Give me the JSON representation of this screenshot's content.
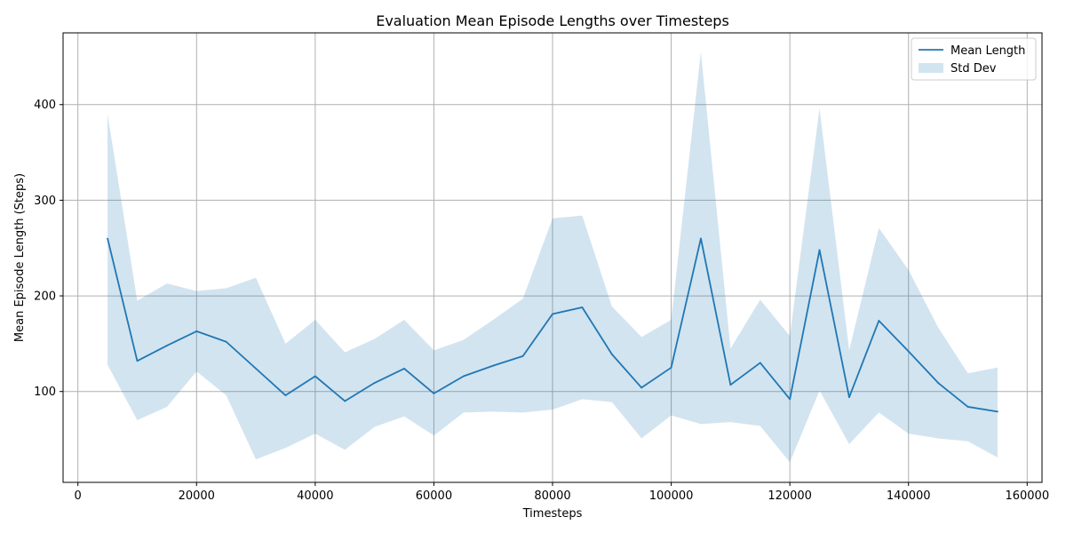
{
  "chart_data": {
    "type": "line",
    "title": "Evaluation Mean Episode Lengths over Timesteps",
    "xlabel": "Timesteps",
    "ylabel": "Mean Episode Length (Steps)",
    "xlim": [
      -2500,
      162500
    ],
    "ylim": [
      5,
      475
    ],
    "xticks": [
      0,
      20000,
      40000,
      60000,
      80000,
      100000,
      120000,
      140000,
      160000
    ],
    "yticks": [
      100,
      200,
      300,
      400
    ],
    "grid": true,
    "legend": {
      "placement": "top-right",
      "entries": [
        "Mean Length",
        "Std Dev"
      ]
    },
    "colors": {
      "line": "#1f77b4",
      "band": "#1f77b4",
      "grid": "#b0b0b0"
    },
    "x": [
      5000,
      10000,
      15000,
      20000,
      25000,
      30000,
      35000,
      40000,
      45000,
      50000,
      55000,
      60000,
      65000,
      70000,
      75000,
      80000,
      85000,
      90000,
      95000,
      100000,
      105000,
      110000,
      115000,
      120000,
      125000,
      130000,
      135000,
      140000,
      145000,
      150000,
      155000
    ],
    "series": [
      {
        "name": "Mean Length",
        "values": [
          260,
          132,
          148,
          163,
          152,
          124,
          96,
          116,
          90,
          109,
          124,
          98,
          116,
          127,
          137,
          181,
          188,
          139,
          104,
          125,
          260,
          107,
          130,
          92,
          248,
          94,
          174,
          142,
          109,
          84,
          79
        ]
      },
      {
        "name": "Std Dev",
        "upper": [
          390,
          195,
          213,
          205,
          208,
          219,
          150,
          175,
          141,
          155,
          175,
          143,
          154,
          175,
          197,
          281,
          284,
          189,
          157,
          175,
          455,
          145,
          196,
          158,
          396,
          143,
          271,
          227,
          167,
          119,
          125
        ],
        "lower": [
          128,
          70,
          84,
          121,
          96,
          29,
          41,
          56,
          39,
          63,
          74,
          54,
          78,
          79,
          78,
          81,
          92,
          89,
          51,
          75,
          66,
          68,
          64,
          26,
          101,
          45,
          78,
          56,
          51,
          48,
          31
        ]
      }
    ]
  }
}
